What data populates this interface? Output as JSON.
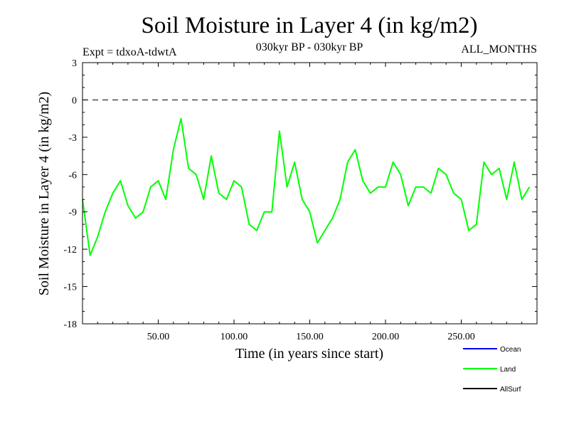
{
  "chart_data": {
    "type": "line",
    "title": "Soil Moisture in Layer 4 (in kg/m2)",
    "subtitle_left": "Expt = tdxoA-tdwtA",
    "subtitle_center": "030kyr BP - 030kyr BP",
    "subtitle_right": "ALL_MONTHS",
    "xlabel": "Time (in years since start)",
    "ylabel": "Soil Moisture in Layer 4 (in kg/m2)",
    "xlim": [
      0,
      300
    ],
    "ylim": [
      -18,
      3
    ],
    "x_ticks": [
      50,
      100,
      150,
      200,
      250
    ],
    "x_tick_labels": [
      "50.00",
      "100.00",
      "150.00",
      "200.00",
      "250.00"
    ],
    "y_ticks": [
      3,
      0,
      -3,
      -6,
      -9,
      -12,
      -15,
      -18
    ],
    "y_tick_labels": [
      "3",
      "0",
      "-3",
      "-6",
      "-9",
      "-12",
      "-15",
      "-18"
    ],
    "zero_line": 0,
    "legend": [
      {
        "name": "Ocean",
        "color": "#0000ff"
      },
      {
        "name": "Land",
        "color": "#00ff00"
      },
      {
        "name": "AllSurf",
        "color": "#000000"
      }
    ],
    "series": [
      {
        "name": "Land",
        "color": "#00ff00",
        "x_start": 0,
        "x_step": 5,
        "values": [
          -8.0,
          -12.5,
          -11.0,
          -9.0,
          -7.5,
          -6.5,
          -8.5,
          -9.5,
          -9.0,
          -7.0,
          -6.5,
          -8.0,
          -4.0,
          -1.5,
          -5.5,
          -6.0,
          -8.0,
          -4.5,
          -7.5,
          -8.0,
          -6.5,
          -7.0,
          -10.0,
          -10.5,
          -9.0,
          -9.0,
          -2.5,
          -7.0,
          -5.0,
          -8.0,
          -9.0,
          -11.5,
          -10.5,
          -9.5,
          -8.0,
          -5.0,
          -4.0,
          -6.5,
          -7.5,
          -7.0,
          -7.0,
          -5.0,
          -6.0,
          -8.5,
          -7.0,
          -7.0,
          -7.5,
          -5.5,
          -6.0,
          -7.5,
          -8.0,
          -10.5,
          -10.0,
          -5.0,
          -6.0,
          -5.5,
          -8.0,
          -5.0,
          -8.0,
          -7.0
        ]
      }
    ]
  }
}
